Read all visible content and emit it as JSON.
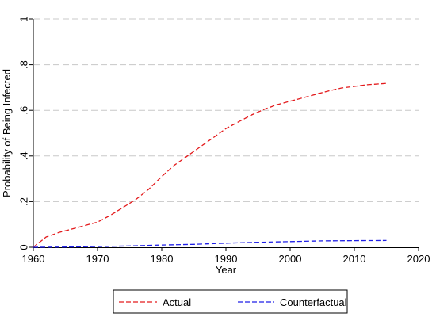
{
  "chart_data": {
    "type": "line",
    "xlabel": "Year",
    "ylabel": "Probability of Being Infected",
    "xlim": [
      1960,
      2020
    ],
    "ylim": [
      0,
      1
    ],
    "x_ticks": [
      1960,
      1970,
      1980,
      1990,
      2000,
      2010,
      2020
    ],
    "y_ticks": [
      0,
      0.2,
      0.4,
      0.6,
      0.8,
      1
    ],
    "y_tick_labels": [
      "0",
      ".2",
      ".4",
      ".6",
      ".8",
      "1"
    ],
    "grid": "horizontal dashed",
    "legend_placement": "bottom",
    "series": [
      {
        "name": "Actual",
        "color": "#e31a1c",
        "style": "dashed",
        "x": [
          1960,
          1962,
          1964,
          1966,
          1968,
          1970,
          1972,
          1974,
          1976,
          1978,
          1980,
          1982,
          1984,
          1986,
          1988,
          1990,
          1992,
          1994,
          1996,
          1998,
          2000,
          2002,
          2004,
          2006,
          2008,
          2010,
          2012,
          2015
        ],
        "y": [
          0.0,
          0.045,
          0.065,
          0.08,
          0.095,
          0.11,
          0.14,
          0.175,
          0.21,
          0.255,
          0.31,
          0.36,
          0.4,
          0.44,
          0.48,
          0.52,
          0.55,
          0.58,
          0.605,
          0.625,
          0.64,
          0.655,
          0.67,
          0.685,
          0.698,
          0.705,
          0.712,
          0.718
        ]
      },
      {
        "name": "Counterfactual",
        "color": "#1f1fe6",
        "style": "dashed",
        "x": [
          1960,
          1965,
          1970,
          1975,
          1980,
          1985,
          1990,
          1995,
          2000,
          2005,
          2010,
          2015
        ],
        "y": [
          0.0,
          0.001,
          0.003,
          0.006,
          0.01,
          0.013,
          0.018,
          0.022,
          0.025,
          0.028,
          0.029,
          0.03
        ]
      }
    ]
  }
}
